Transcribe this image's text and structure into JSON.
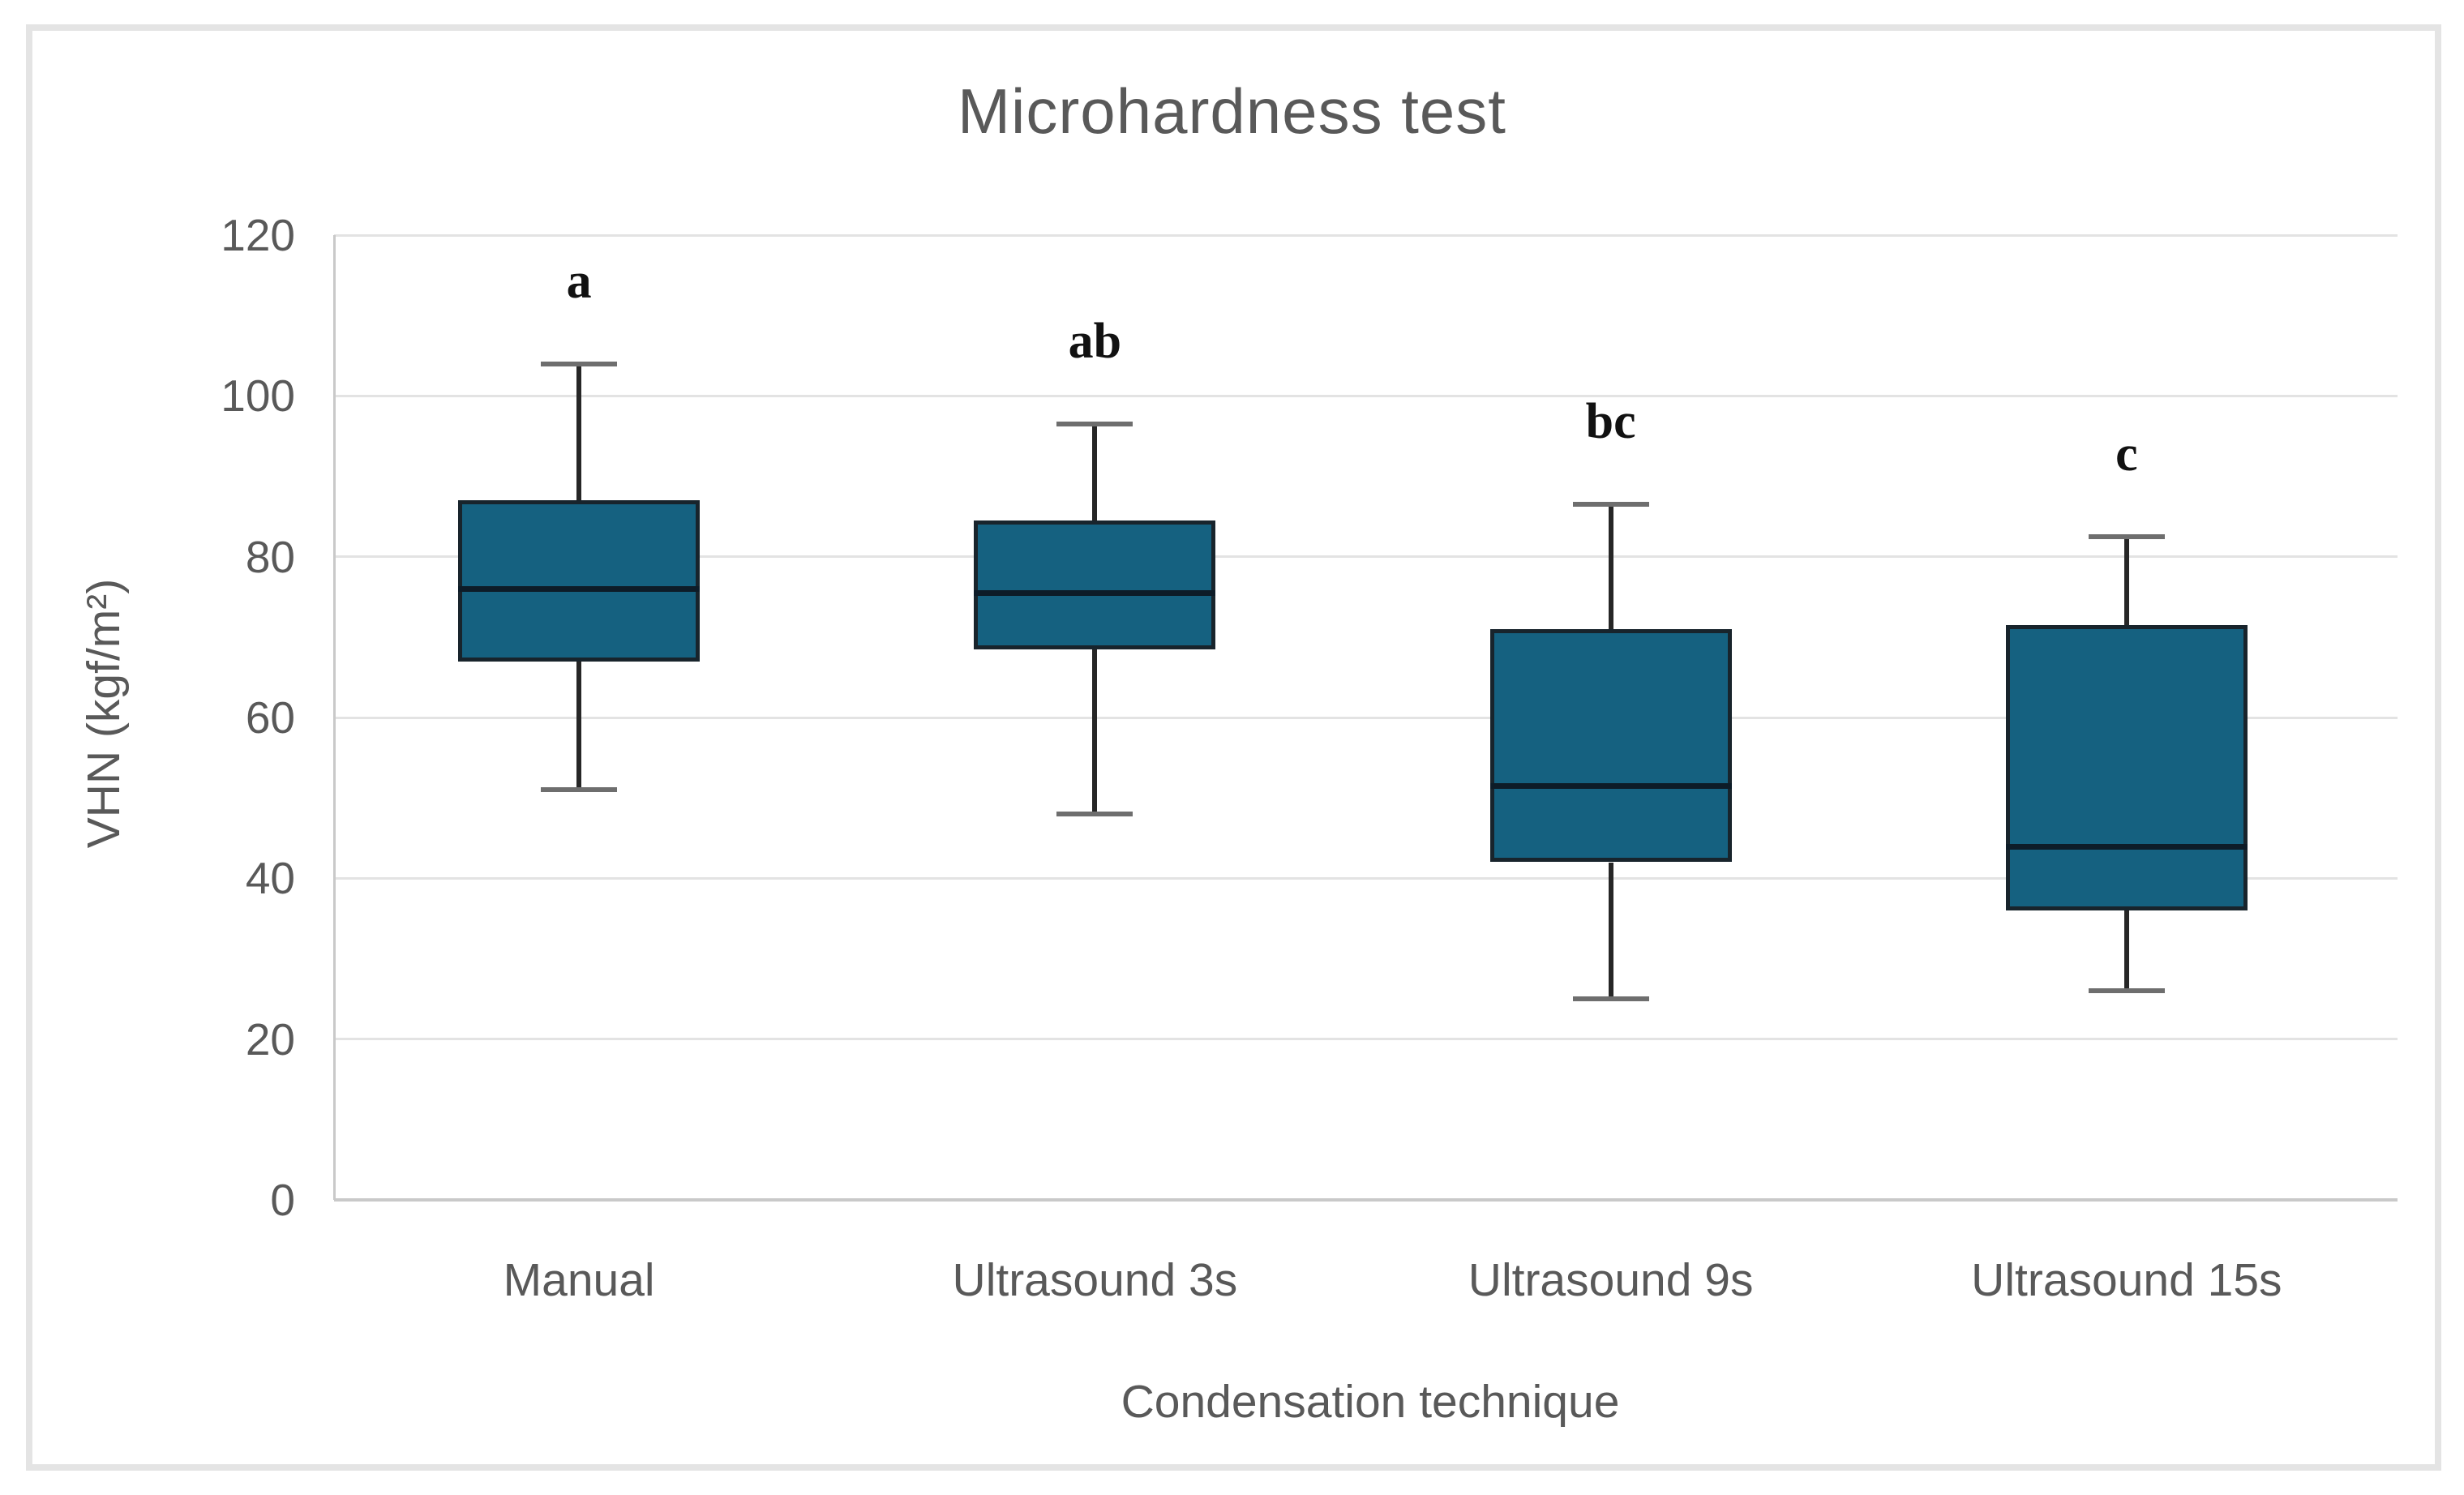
{
  "chart_data": {
    "type": "box",
    "title": "Microhardness test",
    "xlabel": "Condensation technique",
    "ylabel": "VHN (kgf/m²)",
    "ylim": [
      0,
      120
    ],
    "yticks": [
      0,
      20,
      40,
      60,
      80,
      100,
      120
    ],
    "grid": true,
    "legend": false,
    "categories": [
      "Manual",
      "Ultrasound 3s",
      "Ultrasound 9s",
      "Ultrasound 15s"
    ],
    "series": [
      {
        "category": "Manual",
        "min": 51,
        "q1": 67,
        "median": 76,
        "q3": 87,
        "max": 104,
        "letter": "a"
      },
      {
        "category": "Ultrasound 3s",
        "min": 48,
        "q1": 68.5,
        "median": 75.5,
        "q3": 84.5,
        "max": 96.5,
        "letter": "ab"
      },
      {
        "category": "Ultrasound 9s",
        "min": 25,
        "q1": 42,
        "median": 51.5,
        "q3": 71,
        "max": 86.5,
        "letter": "bc"
      },
      {
        "category": "Ultrasound 15s",
        "min": 26,
        "q1": 36,
        "median": 44,
        "q3": 71.5,
        "max": 82.5,
        "letter": "c"
      }
    ],
    "colors": {
      "box_fill": "#156180",
      "box_border": "#18242c",
      "median": "#0d1c28",
      "whisker": "#262626",
      "whisker_cap": "#6e6e6e",
      "gridline": "#e3e3e3",
      "axis_line": "#c9c9c9",
      "text": "#595959",
      "letter": "#111111",
      "frame_border": "#e4e4e4",
      "background": "#ffffff"
    }
  }
}
